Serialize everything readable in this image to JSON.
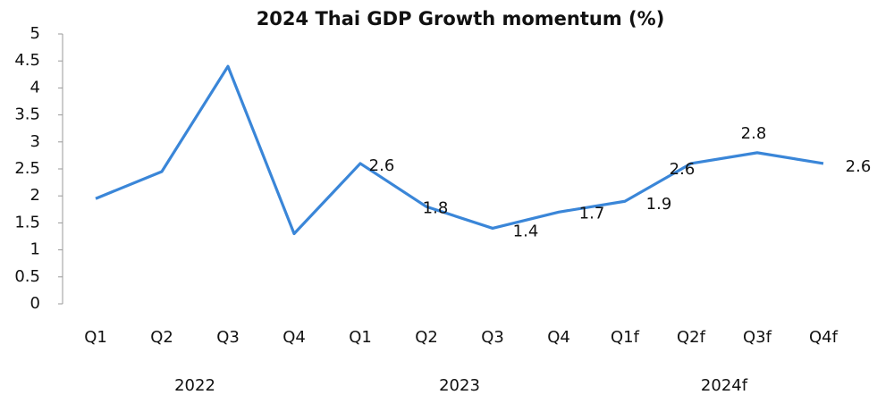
{
  "chart_data": {
    "type": "line",
    "title": "2024 Thai GDP Growth momentum (%)",
    "groups": [
      {
        "label": "2022",
        "categories": [
          "Q1",
          "Q2",
          "Q3",
          "Q4"
        ]
      },
      {
        "label": "2023",
        "categories": [
          "Q1",
          "Q2",
          "Q3",
          "Q4"
        ]
      },
      {
        "label": "2024f",
        "categories": [
          "Q1f",
          "Q2f",
          "Q3f",
          "Q4f"
        ]
      }
    ],
    "values": [
      1.95,
      2.45,
      4.4,
      1.3,
      2.6,
      1.8,
      1.4,
      1.7,
      1.9,
      2.6,
      2.8,
      2.6
    ],
    "value_labels": [
      null,
      null,
      null,
      null,
      "2.6",
      "1.8",
      "1.4",
      "1.7",
      "1.9",
      "2.6",
      "2.8",
      "2.6"
    ],
    "color": "#3a86d8",
    "ylim": [
      0,
      5
    ],
    "yticks": [
      0,
      0.5,
      1,
      1.5,
      2,
      2.5,
      3,
      3.5,
      4,
      4.5,
      5
    ],
    "grid": false
  }
}
